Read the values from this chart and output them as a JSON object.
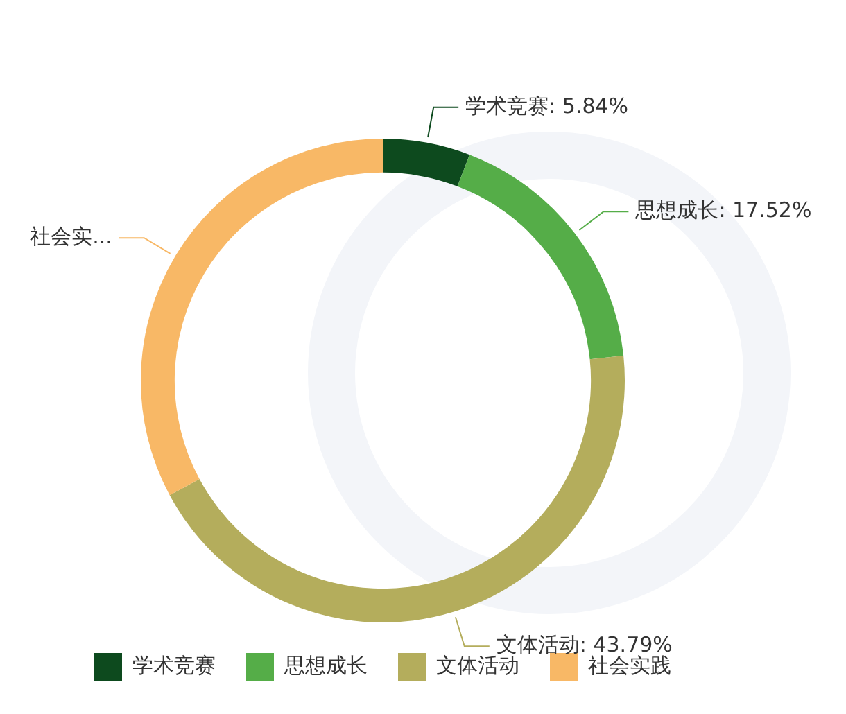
{
  "chart_data": {
    "type": "donut",
    "categories": [
      "学术竞赛",
      "思想成长",
      "文体活动",
      "社会实践"
    ],
    "values": [
      5.84,
      17.52,
      43.79,
      32.85
    ],
    "colors": [
      "#0d4a1e",
      "#55ad48",
      "#b4ad5c",
      "#f8b866"
    ],
    "value_labels": [
      "学术竞赛: 5.84%",
      "思想成长: 17.52%",
      "文体活动: 43.79%",
      "社会实..."
    ],
    "legend": "bottom"
  }
}
